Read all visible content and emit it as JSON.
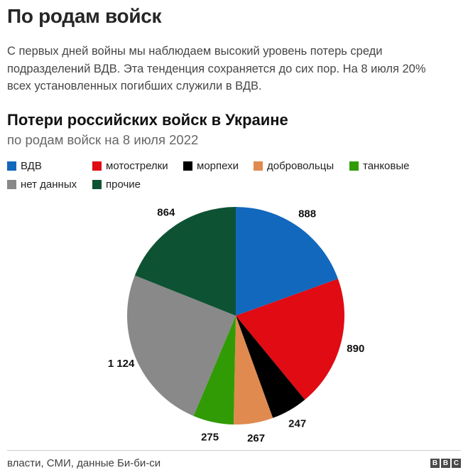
{
  "page": {
    "title": "По родам войск",
    "intro": "С первых дней войны мы наблюдаем высокий уровень потерь среди\nподразделений ВДВ. Эта тенденция сохраняется до сих пор. На 8 июля 20%\nвсех установленных погибших служили в ВДВ."
  },
  "chart": {
    "title": "Потери российских войск в Украине",
    "subtitle": "по родам войск на 8 июля 2022"
  },
  "chart_data": {
    "type": "pie",
    "title": "Потери российских войск в Украине",
    "subtitle": "по родам войск на 8 июля 2022",
    "categories": [
      "ВДВ",
      "мотострелки",
      "морпехи",
      "добровольцы",
      "танковые",
      "нет данных",
      "прочие"
    ],
    "values": [
      888,
      890,
      247,
      267,
      275,
      1124,
      864
    ],
    "value_labels": [
      "888",
      "890",
      "247",
      "267",
      "275",
      "1 124",
      "864"
    ],
    "colors": [
      "#1268bd",
      "#e00b13",
      "#000000",
      "#e08a50",
      "#319b06",
      "#898989",
      "#0d5333"
    ],
    "total": 4555,
    "start_angle_deg": 0,
    "direction": "clockwise",
    "legend_position": "top"
  },
  "footer": {
    "source": "власти, СМИ, данные Би-би-си",
    "logo_blocks": [
      "B",
      "B",
      "C"
    ]
  }
}
